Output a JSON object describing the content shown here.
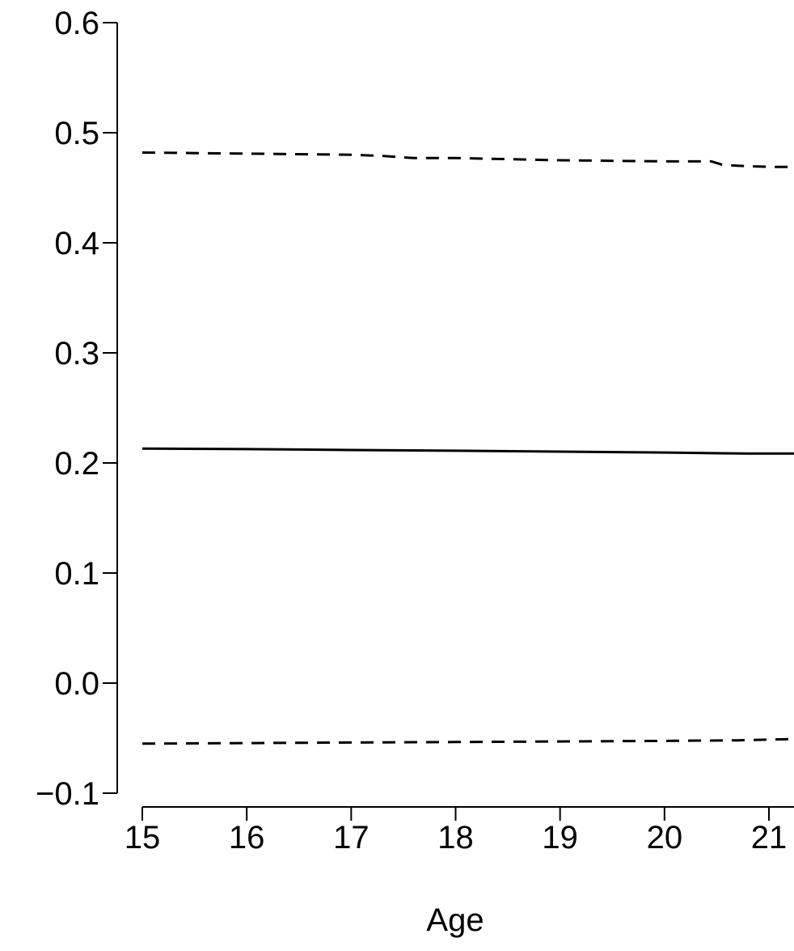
{
  "chart_data": {
    "type": "line",
    "xlabel": "Age",
    "ylabel": "",
    "title": "",
    "xlim": [
      14.77,
      21.25
    ],
    "ylim": [
      -0.1,
      0.6
    ],
    "x_ticks": [
      15,
      16,
      17,
      18,
      19,
      20,
      21
    ],
    "y_ticks": [
      -0.1,
      0.0,
      0.1,
      0.2,
      0.3,
      0.4,
      0.5,
      0.6
    ],
    "y_tick_labels": [
      "−0.1",
      "0.0",
      "0.1",
      "0.2",
      "0.3",
      "0.4",
      "0.5",
      "0.6"
    ],
    "grid": false,
    "series": [
      {
        "style": "dashed",
        "color": "#000000",
        "x": [
          15,
          16,
          17,
          17.3,
          17.6,
          18,
          19,
          20,
          20.45,
          20.55,
          20.7,
          21,
          21.25
        ],
        "y": [
          0.482,
          0.481,
          0.48,
          0.479,
          0.477,
          0.477,
          0.475,
          0.474,
          0.474,
          0.471,
          0.47,
          0.469,
          0.469
        ]
      },
      {
        "style": "solid",
        "color": "#000000",
        "x": [
          15,
          16,
          17,
          18,
          19,
          20,
          20.8,
          21.25
        ],
        "y": [
          0.213,
          0.2126,
          0.2118,
          0.2111,
          0.2103,
          0.2095,
          0.2085,
          0.2085
        ]
      },
      {
        "style": "dashed",
        "color": "#000000",
        "x": [
          15,
          16,
          17,
          18,
          19,
          20,
          20.7,
          21,
          21.25
        ],
        "y": [
          -0.055,
          -0.0545,
          -0.054,
          -0.0535,
          -0.053,
          -0.0525,
          -0.052,
          -0.0513,
          -0.0508
        ]
      }
    ]
  }
}
